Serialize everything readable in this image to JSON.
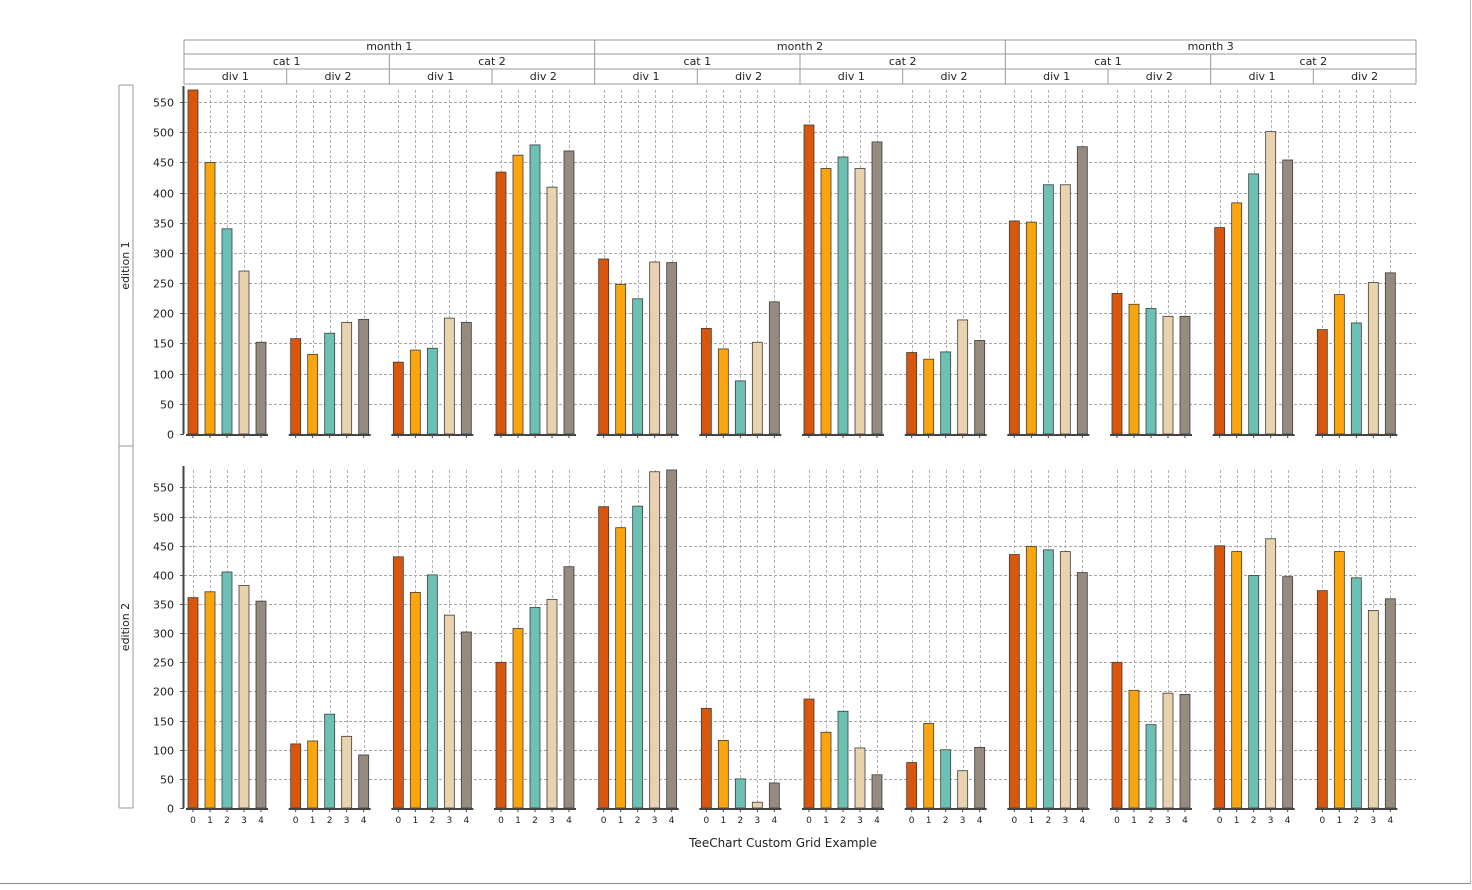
{
  "chart_data": {
    "type": "bar",
    "title": "TeeChart Custom Grid Example",
    "months": [
      "month 1",
      "month 2",
      "month 3"
    ],
    "cats": [
      "cat 1",
      "cat 2"
    ],
    "divs": [
      "div 1",
      "div 2"
    ],
    "categories": [
      "0",
      "1",
      "2",
      "3",
      "4"
    ],
    "editions": [
      {
        "label": "edition 1",
        "ylim": [
          0,
          570
        ],
        "yticks": [
          0,
          50,
          100,
          150,
          200,
          250,
          300,
          350,
          400,
          450,
          500,
          550
        ],
        "groups": [
          [
            570,
            450,
            340,
            270,
            152
          ],
          [
            158,
            132,
            167,
            185,
            190
          ],
          [
            119,
            139,
            142,
            192,
            185
          ],
          [
            434,
            462,
            479,
            409,
            469
          ],
          [
            290,
            248,
            224,
            285,
            284
          ],
          [
            175,
            141,
            88,
            152,
            219
          ],
          [
            512,
            440,
            459,
            440,
            484
          ],
          [
            135,
            124,
            136,
            189,
            155
          ],
          [
            353,
            351,
            413,
            413,
            476
          ],
          [
            233,
            215,
            208,
            195,
            195
          ],
          [
            342,
            383,
            431,
            501,
            454
          ],
          [
            173,
            231,
            184,
            251,
            267
          ]
        ]
      },
      {
        "label": "edition 2",
        "ylim": [
          0,
          580
        ],
        "yticks": [
          0,
          50,
          100,
          150,
          200,
          250,
          300,
          350,
          400,
          450,
          500,
          550
        ],
        "groups": [
          [
            361,
            371,
            405,
            382,
            355
          ],
          [
            110,
            115,
            161,
            123,
            91
          ],
          [
            431,
            370,
            400,
            331,
            302
          ],
          [
            250,
            308,
            344,
            358,
            414
          ],
          [
            517,
            481,
            518,
            577,
            580
          ],
          [
            171,
            116,
            50,
            10,
            43
          ],
          [
            187,
            130,
            166,
            103,
            57
          ],
          [
            78,
            145,
            100,
            64,
            104
          ],
          [
            435,
            449,
            443,
            440,
            404
          ],
          [
            250,
            202,
            143,
            197,
            195
          ],
          [
            450,
            440,
            399,
            462,
            397
          ],
          [
            373,
            440,
            395,
            339,
            359
          ]
        ]
      }
    ],
    "series_colors": [
      "#d9560e",
      "#fba50e",
      "#6dc1b4",
      "#e8d3ae",
      "#978a7e"
    ],
    "grid": true,
    "legend": "none"
  }
}
